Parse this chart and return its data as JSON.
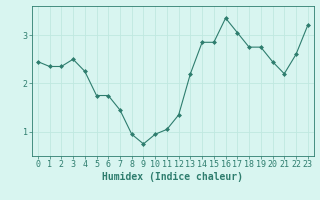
{
  "x": [
    0,
    1,
    2,
    3,
    4,
    5,
    6,
    7,
    8,
    9,
    10,
    11,
    12,
    13,
    14,
    15,
    16,
    17,
    18,
    19,
    20,
    21,
    22,
    23
  ],
  "y": [
    2.45,
    2.35,
    2.35,
    2.5,
    2.25,
    1.75,
    1.75,
    1.45,
    0.95,
    0.75,
    0.95,
    1.05,
    1.35,
    2.2,
    2.85,
    2.85,
    3.35,
    3.05,
    2.75,
    2.75,
    2.45,
    2.2,
    2.6,
    3.2
  ],
  "line_color": "#2e7d6e",
  "marker": "D",
  "marker_size": 2,
  "bg_color": "#d8f5f0",
  "grid_color": "#c0e8e0",
  "xlabel": "Humidex (Indice chaleur)",
  "xlabel_fontsize": 7,
  "tick_fontsize": 6,
  "ylim": [
    0.5,
    3.6
  ],
  "xlim": [
    -0.5,
    23.5
  ],
  "yticks": [
    1,
    2,
    3
  ],
  "xticks": [
    0,
    1,
    2,
    3,
    4,
    5,
    6,
    7,
    8,
    9,
    10,
    11,
    12,
    13,
    14,
    15,
    16,
    17,
    18,
    19,
    20,
    21,
    22,
    23
  ]
}
